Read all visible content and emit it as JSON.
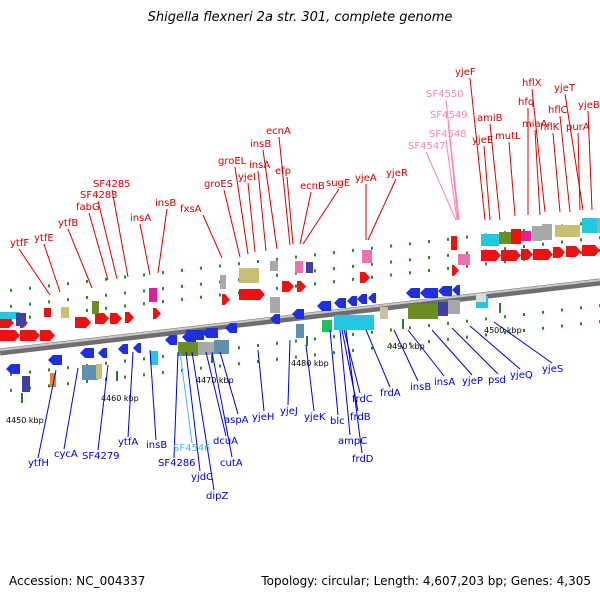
{
  "title": "Shigella flexneri 2a str. 301, complete genome",
  "footer": {
    "accession": "Accession: NC_004337",
    "summary": "Topology: circular; Length: 4,607,203 bp; Genes: 4,305"
  },
  "colors": {
    "forward_label": "#d40000",
    "reverse_label": "#0000d0",
    "pseudo_label": "#ff80b0",
    "pseudo_label_reverse": "#40c0e0",
    "backbone": "#888888"
  },
  "scale": {
    "ticks": [
      "4450 kbp",
      "4460 kbp",
      "4470 kbp",
      "4480 kbp",
      "4490 kbp",
      "4500 kbp"
    ]
  },
  "forward_genes": [
    "ytfF",
    "ytfE",
    "ytfB",
    "fabG",
    "SF4283",
    "SF4285",
    "insA",
    "insB",
    "fxsA",
    "groES",
    "groEL",
    "yjeI",
    "insA",
    "insB",
    "ecnA",
    "efp",
    "ecnB",
    "sugE",
    "yjeA",
    "yjeR",
    "SF4547",
    "SF4548",
    "SF4549",
    "SF4550",
    "yjeF",
    "yjeE",
    "amiB",
    "mutL",
    "hfq",
    "miaA",
    "hflX",
    "hflK",
    "hflC",
    "yjeT",
    "purA",
    "yjeB"
  ],
  "reverse_genes": [
    "ytfH",
    "cycA",
    "SF4279",
    "ytfA",
    "insB",
    "SF4286",
    "SF4546",
    "yjdC",
    "dipZ",
    "cutA",
    "dcuA",
    "aspA",
    "yjeH",
    "yjeJ",
    "yjeK",
    "blc",
    "ampC",
    "frdD",
    "frdC",
    "frdB",
    "frdA",
    "insB",
    "insA",
    "yjeP",
    "psd",
    "yjeQ",
    "yjeS"
  ]
}
